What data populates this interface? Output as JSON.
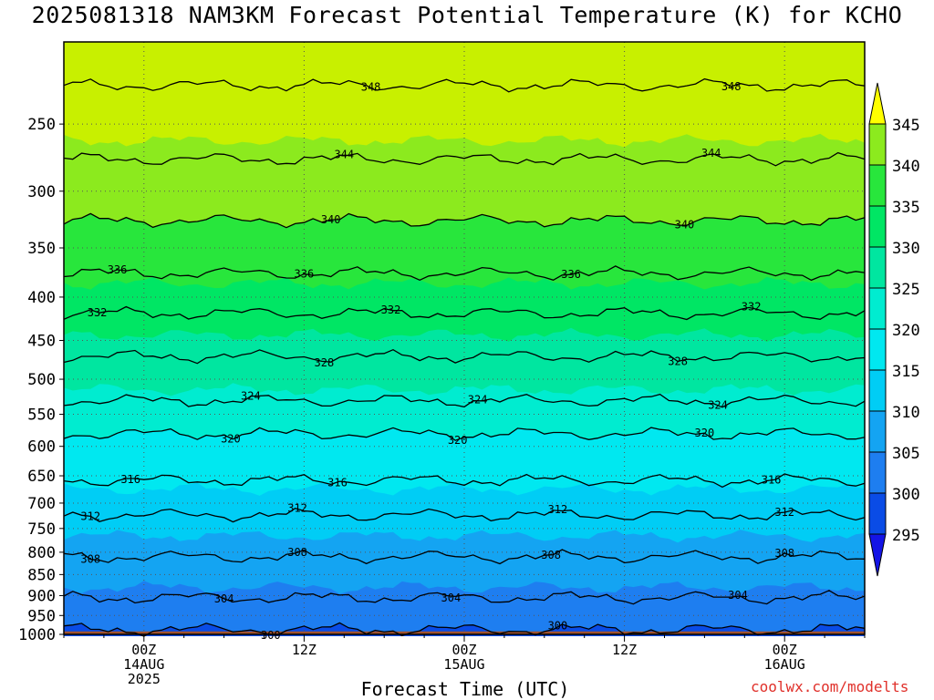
{
  "title": "2025081318 NAM3KM Forecast Potential Temperature (K) for KCHO",
  "credit": "coolwx.com/modelts",
  "chart_data": {
    "type": "heatmap",
    "title": "2025081318 NAM3KM Forecast Potential Temperature (K) for KCHO",
    "xlabel": "Forecast Time (UTC)",
    "ylabel": "",
    "y_scale": "log",
    "y_reversed": true,
    "ylim": [
      1000,
      200
    ],
    "x_units": "hours since 2025-08-13 18Z",
    "xlim": [
      0,
      60
    ],
    "x_ticks": [
      {
        "value": 6,
        "label": [
          "00Z",
          "14AUG",
          "2025"
        ]
      },
      {
        "value": 18,
        "label": [
          "12Z"
        ]
      },
      {
        "value": 30,
        "label": [
          "00Z",
          "15AUG"
        ]
      },
      {
        "value": 42,
        "label": [
          "12Z"
        ]
      },
      {
        "value": 54,
        "label": [
          "00Z",
          "16AUG"
        ]
      }
    ],
    "y_ticks": [
      250,
      300,
      350,
      400,
      450,
      500,
      550,
      600,
      650,
      700,
      750,
      800,
      850,
      900,
      950,
      1000
    ],
    "grid": true,
    "colorbar": {
      "levels": [
        295,
        300,
        305,
        310,
        315,
        320,
        325,
        330,
        335,
        340,
        345
      ],
      "colors": [
        "#1414e6",
        "#0a4ce6",
        "#1e7ef0",
        "#14a4f2",
        "#00cdf5",
        "#00e8f0",
        "#00ecd0",
        "#00e6a0",
        "#00e664",
        "#28e63c",
        "#8cea1e",
        "#c8f000",
        "#ffff00"
      ]
    },
    "contour_interval": 4,
    "contours": [
      {
        "value": 300,
        "pressure": 987,
        "label_x": [
          15.5,
          37
        ]
      },
      {
        "value": 304,
        "pressure": 905,
        "label_x": [
          12,
          29,
          50.5
        ]
      },
      {
        "value": 308,
        "pressure": 810,
        "label_x": [
          2,
          17.5,
          36.5,
          54
        ]
      },
      {
        "value": 312,
        "pressure": 723,
        "label_x": [
          2,
          17.5,
          37,
          54
        ]
      },
      {
        "value": 316,
        "pressure": 658,
        "label_x": [
          5,
          20.5,
          53
        ]
      },
      {
        "value": 320,
        "pressure": 580,
        "label_x": [
          12.5,
          29.5,
          48
        ]
      },
      {
        "value": 324,
        "pressure": 530,
        "label_x": [
          14,
          31,
          49
        ]
      },
      {
        "value": 328,
        "pressure": 470,
        "label_x": [
          19.5,
          46
        ]
      },
      {
        "value": 332,
        "pressure": 418,
        "label_x": [
          2.5,
          24.5,
          51.5
        ]
      },
      {
        "value": 336,
        "pressure": 375,
        "label_x": [
          4,
          18,
          38
        ]
      },
      {
        "value": 340,
        "pressure": 325,
        "label_x": [
          20,
          46.5
        ]
      },
      {
        "value": 344,
        "pressure": 275,
        "label_x": [
          21,
          48.5
        ]
      },
      {
        "value": 348,
        "pressure": 225,
        "label_x": [
          23,
          50
        ]
      }
    ],
    "ground": {
      "pressure_top": 992,
      "color": "#a0522d"
    }
  }
}
